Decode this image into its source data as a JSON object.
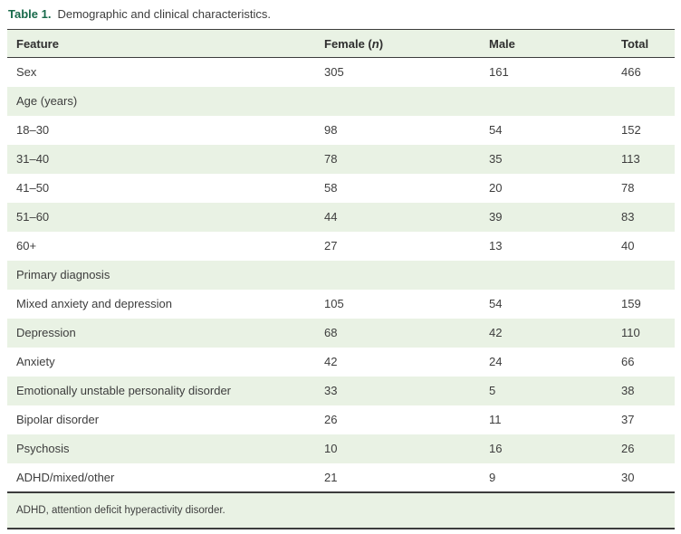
{
  "caption": {
    "label": "Table 1.",
    "text": "Demographic and clinical characteristics."
  },
  "colors": {
    "accent_green": "#17694a",
    "row_shade": "#e9f2e4",
    "rule": "#3c3c3c",
    "text": "#3d3d3d"
  },
  "chart_data": {
    "type": "table",
    "title": "Table 1. Demographic and clinical characteristics.",
    "columns": [
      {
        "pre": "Feature",
        "italic": "",
        "post": ""
      },
      {
        "pre": "Female (",
        "italic": "n",
        "post": ")"
      },
      {
        "pre": "Male",
        "italic": "",
        "post": ""
      },
      {
        "pre": "Total",
        "italic": "",
        "post": ""
      }
    ],
    "rows": [
      {
        "feature": "Sex",
        "female": "305",
        "male": "161",
        "total": "466",
        "section": false
      },
      {
        "feature": "Age (years)",
        "female": "",
        "male": "",
        "total": "",
        "section": true
      },
      {
        "feature": "18–30",
        "female": "98",
        "male": "54",
        "total": "152",
        "section": false
      },
      {
        "feature": "31–40",
        "female": "78",
        "male": "35",
        "total": "113",
        "section": false
      },
      {
        "feature": "41–50",
        "female": "58",
        "male": "20",
        "total": "78",
        "section": false
      },
      {
        "feature": "51–60",
        "female": "44",
        "male": "39",
        "total": "83",
        "section": false
      },
      {
        "feature": "60+",
        "female": "27",
        "male": "13",
        "total": "40",
        "section": false
      },
      {
        "feature": "Primary diagnosis",
        "female": "",
        "male": "",
        "total": "",
        "section": true
      },
      {
        "feature": "Mixed anxiety and depression",
        "female": "105",
        "male": "54",
        "total": "159",
        "section": false
      },
      {
        "feature": "Depression",
        "female": "68",
        "male": "42",
        "total": "110",
        "section": false
      },
      {
        "feature": "Anxiety",
        "female": "42",
        "male": "24",
        "total": "66",
        "section": false
      },
      {
        "feature": "Emotionally unstable personality disorder",
        "female": "33",
        "male": "5",
        "total": "38",
        "section": false
      },
      {
        "feature": "Bipolar disorder",
        "female": "26",
        "male": "11",
        "total": "37",
        "section": false
      },
      {
        "feature": "Psychosis",
        "female": "10",
        "male": "16",
        "total": "26",
        "section": false
      },
      {
        "feature": "ADHD/mixed/other",
        "female": "21",
        "male": "9",
        "total": "30",
        "section": false
      }
    ],
    "footnote": "ADHD, attention deficit hyperactivity disorder."
  }
}
